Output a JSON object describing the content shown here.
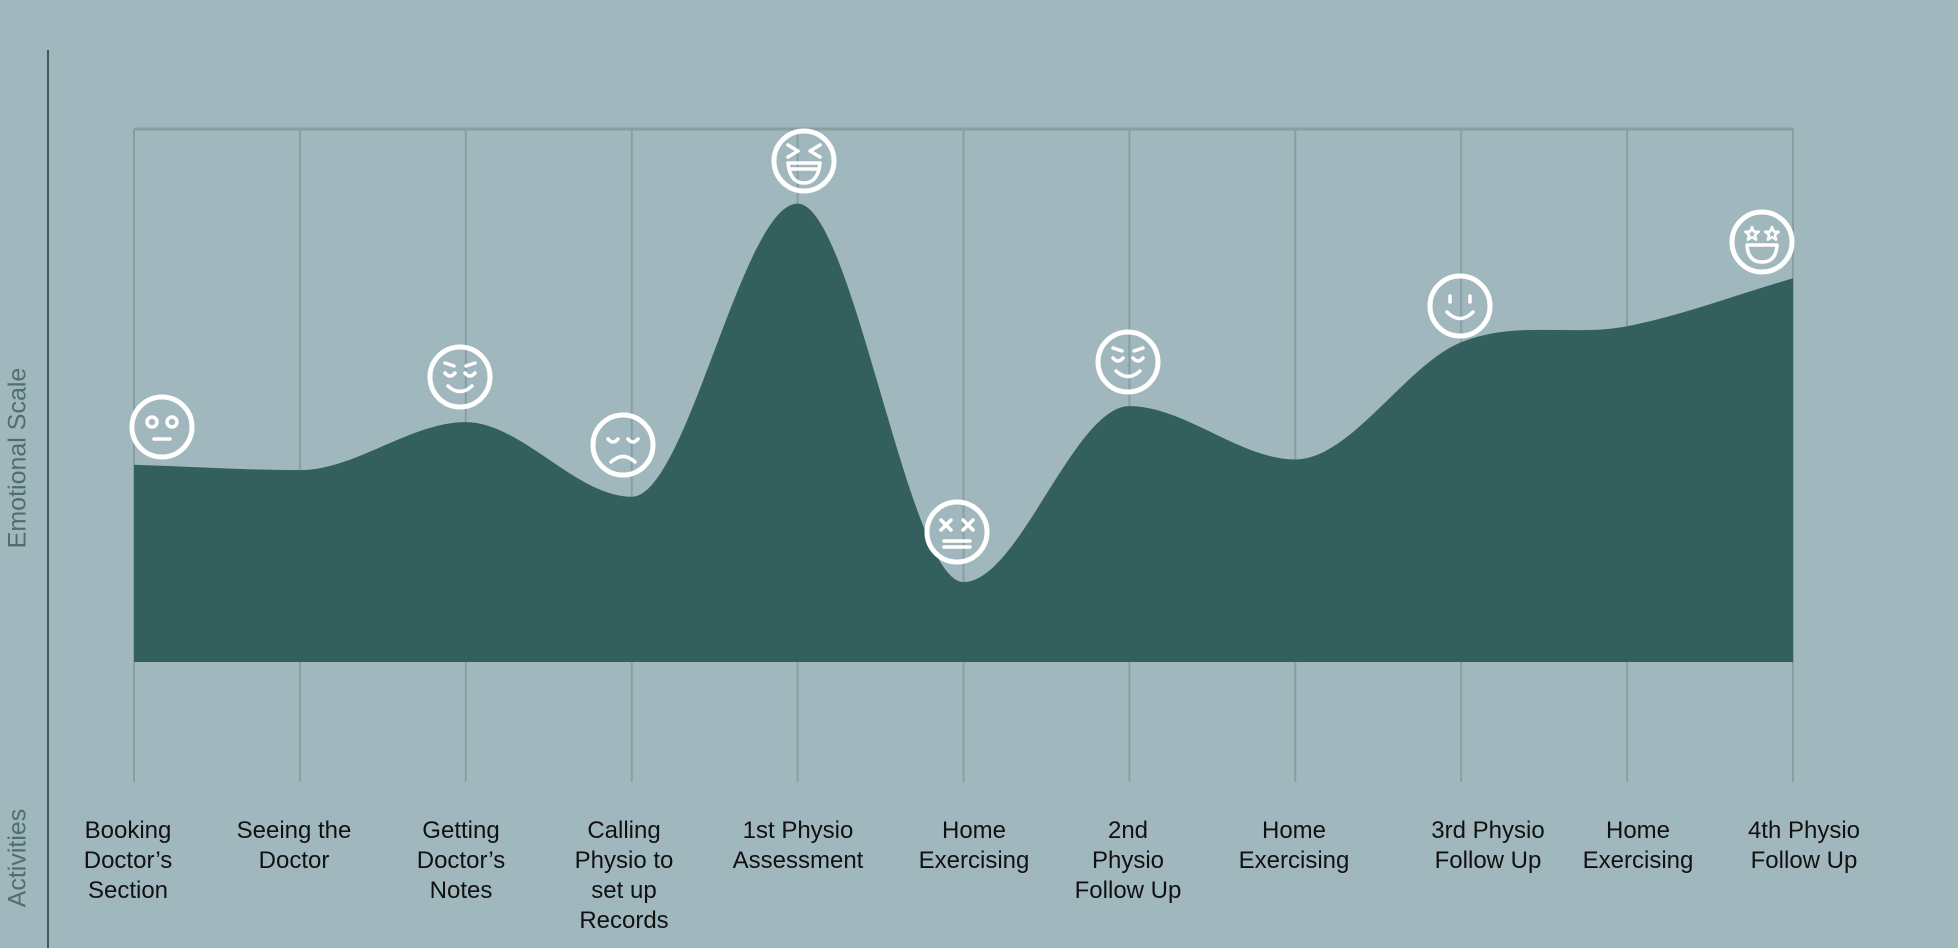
{
  "axes": {
    "y_title": "Emotional Scale",
    "x_title": "Activities"
  },
  "colors": {
    "background": "#a0b8bd",
    "area_fill": "#33605c",
    "gridline": "#879fa3",
    "axis_line": "#3f5c5c",
    "face_stroke": "#ffffff",
    "label_text": "#111111"
  },
  "chart_data": {
    "type": "area",
    "categories": [
      "Booking Doctor’s Section",
      "Seeing the Doctor",
      "Getting Doctor’s Notes",
      "Calling Physio to set up Records",
      "1st Physio Assessment",
      "Home Exercising",
      "2nd Physio Follow Up",
      "Home Exercising",
      "3rd Physio Follow Up",
      "Home Exercising",
      "4th Physio Follow Up"
    ],
    "series": [
      {
        "values": [
          37,
          36,
          45,
          31,
          86,
          15,
          48,
          38,
          60,
          63,
          72
        ]
      }
    ],
    "ylim": [
      0,
      100
    ],
    "grid": true,
    "title": "",
    "xlabel": "Activities",
    "ylabel": "Emotional Scale"
  },
  "emotions": [
    {
      "category": "Booking Doctor’s Section",
      "icon": "neutral-face-icon"
    },
    {
      "category": "Getting Doctor’s Notes",
      "icon": "relieved-face-icon"
    },
    {
      "category": "Calling Physio to set up Records",
      "icon": "sad-face-icon"
    },
    {
      "category": "1st Physio Assessment",
      "icon": "laughing-face-icon"
    },
    {
      "category": "Home Exercising",
      "icon": "dizzy-face-icon"
    },
    {
      "category": "2nd Physio Follow Up",
      "icon": "relieved-face-icon"
    },
    {
      "category": "3rd Physio Follow Up",
      "icon": "smiling-face-icon"
    },
    {
      "category": "4th Physio Follow Up",
      "icon": "star-struck-face-icon"
    }
  ],
  "activities": [
    [
      "Booking",
      "Doctor’s",
      "Section"
    ],
    [
      "Seeing the",
      "Doctor"
    ],
    [
      "Getting",
      "Doctor’s",
      "Notes"
    ],
    [
      "Calling",
      "Physio to",
      "set up",
      "Records"
    ],
    [
      "1st Physio",
      "Assessment"
    ],
    [
      "Home",
      "Exercising"
    ],
    [
      "2nd",
      "Physio",
      "Follow Up"
    ],
    [
      "Home",
      "Exercising"
    ],
    [
      "3rd Physio",
      "Follow Up"
    ],
    [
      "Home",
      "Exercising"
    ],
    [
      "4th Physio",
      "Follow Up"
    ]
  ]
}
